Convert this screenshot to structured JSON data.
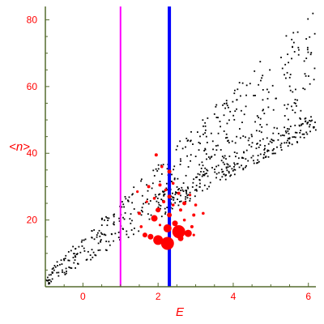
{
  "chart_data": {
    "type": "scatter",
    "xlabel": "E",
    "ylabel": "<n>",
    "xlim": [
      -1,
      6.2
    ],
    "ylim": [
      0,
      84
    ],
    "xticks": [
      0,
      2,
      4,
      6
    ],
    "yticks": [
      20,
      40,
      60,
      80
    ],
    "grid": false,
    "colors": {
      "axes": "#556b2f",
      "text": "#ff0000",
      "dots": "#000000",
      "highlight": "#ff0000",
      "line_magenta": "#ff00ff",
      "line_blue": "#0000ff"
    },
    "vertical_lines": [
      {
        "x": 1.0,
        "color": "#ff00ff"
      },
      {
        "x": 2.3,
        "color": "#0000ff"
      }
    ],
    "bands": [
      {
        "x0": -1.0,
        "y0_min": 0,
        "y0_max": 4,
        "x1": 6.2,
        "y1_min": 48,
        "y1_max": 84,
        "count": 520
      },
      {
        "x0": 2.0,
        "y0_min": 22,
        "y0_max": 28,
        "x1": 6.2,
        "y1_min": 46,
        "y1_max": 52,
        "count": 200
      }
    ],
    "highlight_points": [
      {
        "x": 2.25,
        "y": 13,
        "s": 8
      },
      {
        "x": 2.55,
        "y": 16.5,
        "s": 8
      },
      {
        "x": 2.0,
        "y": 14,
        "s": 6
      },
      {
        "x": 2.8,
        "y": 16,
        "s": 4.5
      },
      {
        "x": 2.25,
        "y": 17.5,
        "s": 5
      },
      {
        "x": 1.9,
        "y": 20.5,
        "s": 4
      },
      {
        "x": 2.45,
        "y": 19,
        "s": 3.5
      },
      {
        "x": 1.8,
        "y": 15,
        "s": 3.5
      },
      {
        "x": 2.6,
        "y": 14.5,
        "s": 3.5
      },
      {
        "x": 2.0,
        "y": 23,
        "s": 3
      },
      {
        "x": 1.65,
        "y": 15.5,
        "s": 3
      },
      {
        "x": 2.3,
        "y": 21.5,
        "s": 3
      },
      {
        "x": 2.3,
        "y": 34.5,
        "s": 2.5
      },
      {
        "x": 2.7,
        "y": 25,
        "s": 2.5
      },
      {
        "x": 2.3,
        "y": 27,
        "s": 2.5
      },
      {
        "x": 2.05,
        "y": 30.5,
        "s": 2
      },
      {
        "x": 1.95,
        "y": 39.5,
        "s": 2
      },
      {
        "x": 2.15,
        "y": 25.5,
        "s": 2
      },
      {
        "x": 2.95,
        "y": 21.5,
        "s": 2
      },
      {
        "x": 2.55,
        "y": 28,
        "s": 2
      },
      {
        "x": 1.75,
        "y": 30,
        "s": 2
      },
      {
        "x": 2.9,
        "y": 18,
        "s": 2
      },
      {
        "x": 1.5,
        "y": 22,
        "s": 2
      },
      {
        "x": 2.6,
        "y": 23,
        "s": 2
      },
      {
        "x": 2.4,
        "y": 31,
        "s": 1.8
      },
      {
        "x": 2.1,
        "y": 36,
        "s": 1.8
      },
      {
        "x": 1.55,
        "y": 18,
        "s": 1.8
      },
      {
        "x": 3.2,
        "y": 22,
        "s": 1.8
      },
      {
        "x": 3.0,
        "y": 24.5,
        "s": 1.8
      },
      {
        "x": 1.9,
        "y": 26.5,
        "s": 1.8
      },
      {
        "x": 2.7,
        "y": 20,
        "s": 1.8
      },
      {
        "x": 2.4,
        "y": 24.5,
        "s": 1.8
      },
      {
        "x": 2.2,
        "y": 29,
        "s": 1.8
      },
      {
        "x": 1.45,
        "y": 28.5,
        "s": 1.6
      },
      {
        "x": 2.85,
        "y": 27.5,
        "s": 1.6
      },
      {
        "x": 2.05,
        "y": 18.5,
        "s": 1.6
      },
      {
        "x": 2.95,
        "y": 15.5,
        "s": 1.6
      },
      {
        "x": 1.7,
        "y": 25.5,
        "s": 1.6
      }
    ]
  }
}
